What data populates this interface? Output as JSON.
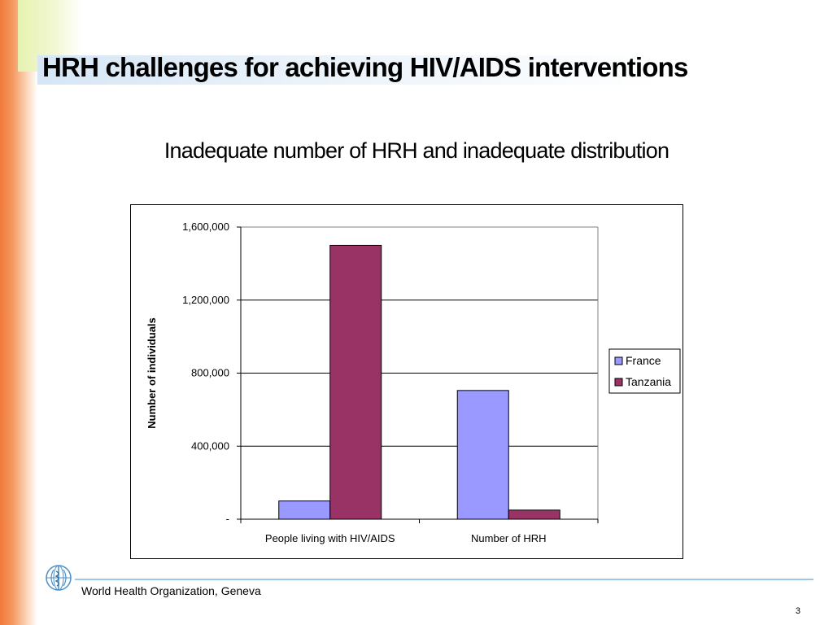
{
  "slide": {
    "title": "HRH challenges for achieving HIV/AIDS interventions",
    "subtitle": "Inadequate number of HRH and inadequate distribution",
    "footer": "World Health Organization, Geneva",
    "page_number": "3",
    "logo_icon": "who-emblem-icon",
    "colors": {
      "accent_orange": "#f07a3c",
      "accent_green": "#e6f2b0",
      "footer_line": "#9cc7e8"
    }
  },
  "chart_data": {
    "type": "bar",
    "title": "",
    "xlabel": "",
    "ylabel": "Number of individuals",
    "categories": [
      "People living with HIV/AIDS",
      "Number of HRH"
    ],
    "series": [
      {
        "name": "France",
        "color": "#9999ff",
        "values": [
          100000,
          705000
        ]
      },
      {
        "name": "Tanzania",
        "color": "#993366",
        "values": [
          1500000,
          50000
        ]
      }
    ],
    "ylim": [
      0,
      1600000
    ],
    "yticks": [
      {
        "value": 0,
        "label": "-"
      },
      {
        "value": 400000,
        "label": "400,000"
      },
      {
        "value": 800000,
        "label": "800,000"
      },
      {
        "value": 1200000,
        "label": "1,200,000"
      },
      {
        "value": 1600000,
        "label": "1,600,000"
      }
    ],
    "grid": true,
    "legend_position": "right"
  }
}
